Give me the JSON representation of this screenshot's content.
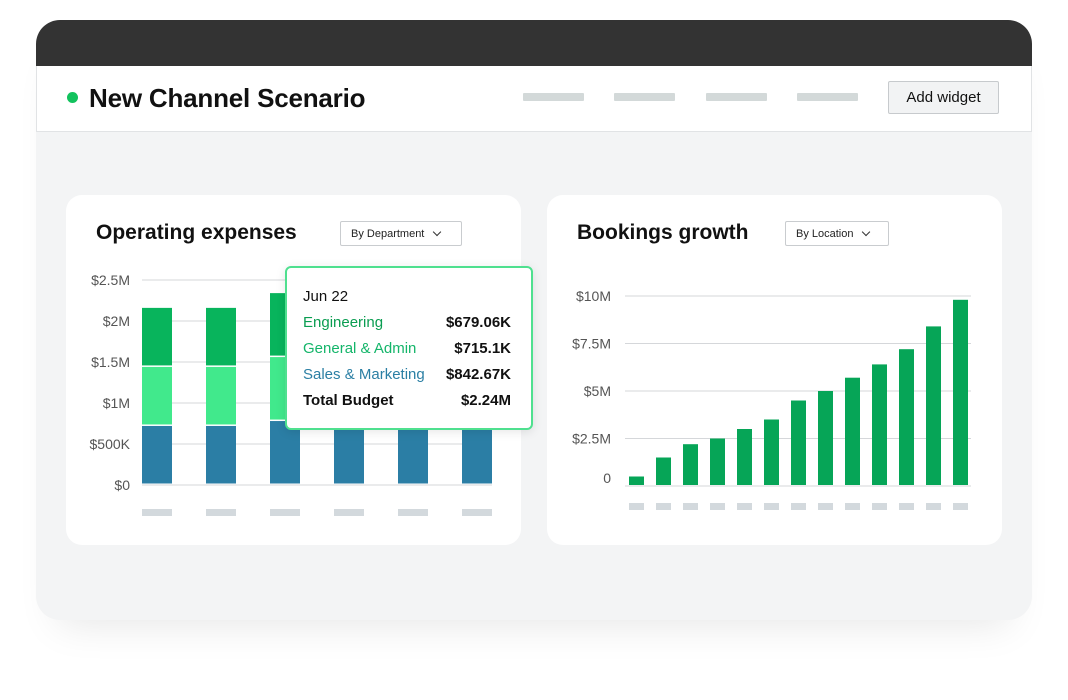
{
  "header": {
    "title": "New Channel Scenario",
    "add_widget_label": "Add widget"
  },
  "colors": {
    "status_dot": "#12c25d",
    "engineering": "#08b45c",
    "general_admin": "#41e98c",
    "sales_marketing": "#2b7ea5",
    "bookings_bar": "#06a557",
    "tooltip_border": "#4fe08f"
  },
  "operating_expenses": {
    "title": "Operating expenses",
    "dropdown": "By Department",
    "tooltip": {
      "date": "Jun 22",
      "rows": [
        {
          "label": "Engineering",
          "value": "$679.06K"
        },
        {
          "label": "General & Admin",
          "value": "$715.1K"
        },
        {
          "label": "Sales & Marketing",
          "value": "$842.67K"
        }
      ],
      "total_label": "Total Budget",
      "total_value": "$2.24M"
    }
  },
  "bookings_growth": {
    "title": "Bookings growth",
    "dropdown": "By Location"
  },
  "chart_data": [
    {
      "type": "bar",
      "stacked": true,
      "title": "Operating expenses",
      "y_tick_labels": [
        "$0",
        "$500K",
        "$1M",
        "$1.5M",
        "$2M",
        "$2.5M"
      ],
      "ylim": [
        0,
        2500000
      ],
      "grid": true,
      "series": [
        {
          "name": "Sales & Marketing",
          "values": [
            720000,
            720000,
            780000,
            720000,
            720000,
            720000
          ]
        },
        {
          "name": "General & Admin",
          "values": [
            720000,
            720000,
            780000,
            null,
            null,
            null
          ]
        },
        {
          "name": "Engineering",
          "values": [
            720000,
            720000,
            780000,
            null,
            null,
            null
          ]
        }
      ]
    },
    {
      "type": "bar",
      "title": "Bookings growth",
      "y_tick_labels": [
        "0",
        "$2.5M",
        "$5M",
        "$7.5M",
        "$10M"
      ],
      "ylim": [
        0,
        10000000
      ],
      "grid": true,
      "values": [
        500000,
        1500000,
        2200000,
        2500000,
        3000000,
        3500000,
        4500000,
        5000000,
        5700000,
        6400000,
        7200000,
        8400000,
        9800000
      ]
    }
  ]
}
